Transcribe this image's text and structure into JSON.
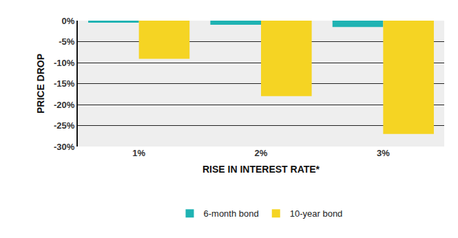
{
  "chart_data": {
    "type": "bar",
    "x_label": "RISE IN INTEREST RATE*",
    "y_label": "PRICE DROP",
    "categories": [
      "1%",
      "2%",
      "3%"
    ],
    "series": [
      {
        "name": "6-month bond",
        "color": "#1fb3b3",
        "values": [
          -0.5,
          -1.0,
          -1.5
        ]
      },
      {
        "name": "10-year bond",
        "color": "#f5d423",
        "values": [
          -9.1,
          -18,
          -27
        ]
      }
    ],
    "ylim": [
      -30,
      0
    ],
    "yticks": [
      {
        "value": 0,
        "label": "0%"
      },
      {
        "value": -5,
        "label": "-5%"
      },
      {
        "value": -10,
        "label": "-10%"
      },
      {
        "value": -15,
        "label": "-15%"
      },
      {
        "value": -20,
        "label": "-20%"
      },
      {
        "value": -25,
        "label": "-25%"
      },
      {
        "value": -30,
        "label": "-30%"
      }
    ],
    "grid": true,
    "legend": "bottom"
  }
}
